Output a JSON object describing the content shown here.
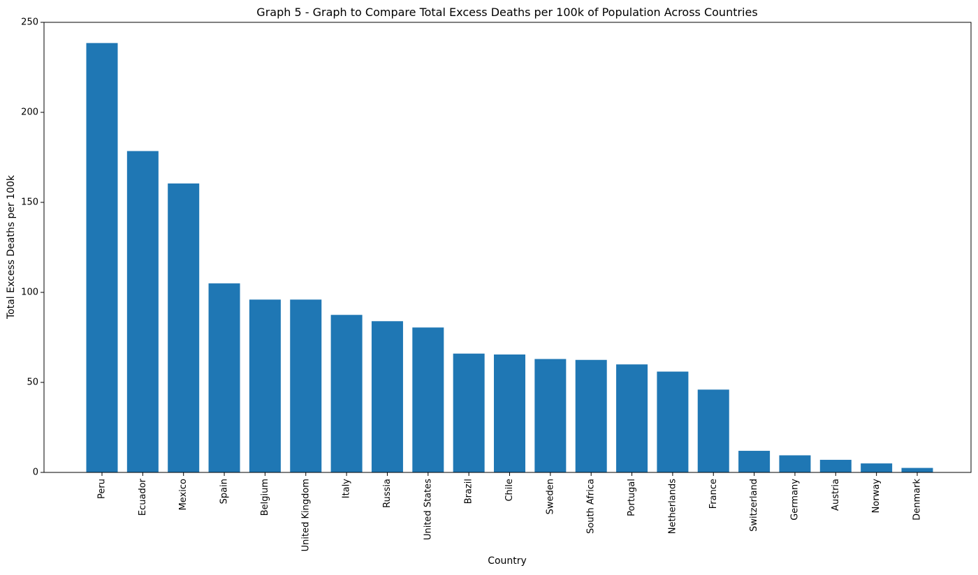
{
  "colors": {
    "bar": "#1f77b4",
    "axis": "#000000",
    "background": "#ffffff"
  },
  "chart_data": {
    "type": "bar",
    "title": "Graph 5 - Graph to Compare Total Excess Deaths per 100k of Population Across Countries",
    "xlabel": "Country",
    "ylabel": "Total Excess Deaths per 100k",
    "ylim": [
      0,
      250
    ],
    "yticks": [
      0,
      50,
      100,
      150,
      200,
      250
    ],
    "grid": false,
    "legend": "none",
    "categories": [
      "Peru",
      "Ecuador",
      "Mexico",
      "Spain",
      "Belgium",
      "United Kingdom",
      "Italy",
      "Russia",
      "United States",
      "Brazil",
      "Chile",
      "Sweden",
      "South Africa",
      "Portugal",
      "Netherlands",
      "France",
      "Switzerland",
      "Germany",
      "Austria",
      "Norway",
      "Denmark"
    ],
    "values": [
      238.5,
      178.5,
      160.5,
      105,
      96,
      96,
      87.5,
      84,
      80.5,
      66,
      65.5,
      63,
      62.5,
      60,
      56,
      46,
      12,
      9.5,
      7,
      5,
      2.5
    ]
  }
}
